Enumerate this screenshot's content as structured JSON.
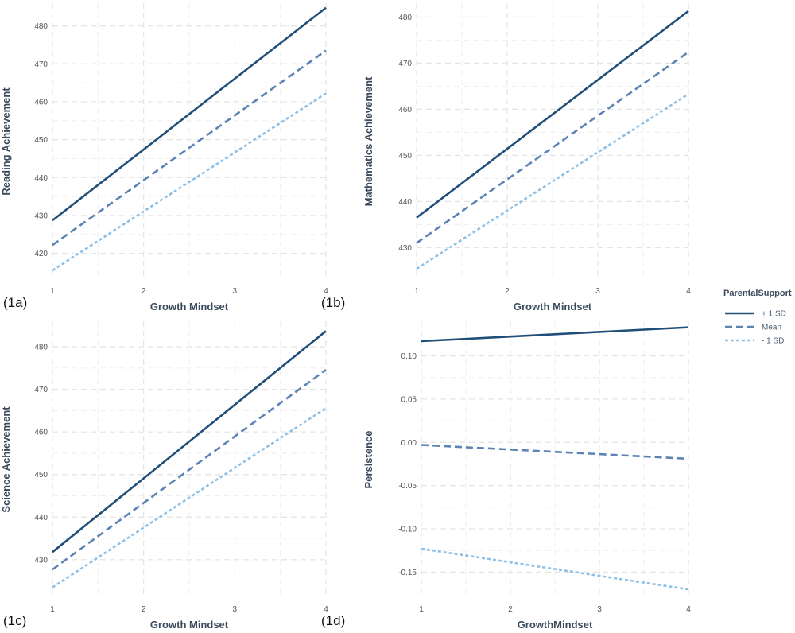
{
  "legend": {
    "title": "ParentalSupport",
    "entries": [
      {
        "label": "+ 1 SD",
        "color": "#1f4e79",
        "dash": "solid"
      },
      {
        "label": "Mean",
        "color": "#5b83b4",
        "dash": "dashed"
      },
      {
        "label": "- 1 SD",
        "color": "#8ec0e6",
        "dash": "dotted"
      }
    ]
  },
  "chart_data": [
    {
      "type": "line",
      "panel_label": "(1a)",
      "xlabel": "Growth Mindset",
      "ylabel": "Reading Achievement",
      "x": [
        1,
        4
      ],
      "xticks": [
        1,
        2,
        3,
        4
      ],
      "yticks": [
        420,
        430,
        440,
        450,
        460,
        470,
        480
      ],
      "ylim": [
        413,
        486
      ],
      "series": [
        {
          "name": "+ 1 SD",
          "values": [
            428.7,
            484.8
          ]
        },
        {
          "name": "Mean",
          "values": [
            422.2,
            473.5
          ]
        },
        {
          "name": "- 1 SD",
          "values": [
            415.5,
            462.2
          ]
        }
      ]
    },
    {
      "type": "line",
      "panel_label": "(1b)",
      "xlabel": "Growth Mindset",
      "ylabel": "Mathematics Achievement",
      "x": [
        1,
        4
      ],
      "xticks": [
        1,
        2,
        3,
        4
      ],
      "yticks": [
        430,
        440,
        450,
        460,
        470,
        480
      ],
      "ylim": [
        423,
        483
      ],
      "series": [
        {
          "name": "+ 1 SD",
          "values": [
            436.5,
            481.3
          ]
        },
        {
          "name": "Mean",
          "values": [
            431.0,
            472.4
          ]
        },
        {
          "name": "- 1 SD",
          "values": [
            425.4,
            463.3
          ]
        }
      ]
    },
    {
      "type": "line",
      "panel_label": "(1c)",
      "xlabel": "Growth Mindset",
      "ylabel": "Science Achievement",
      "x": [
        1,
        4
      ],
      "xticks": [
        1,
        2,
        3,
        4
      ],
      "yticks": [
        430,
        440,
        450,
        460,
        470,
        480
      ],
      "ylim": [
        421,
        486
      ],
      "series": [
        {
          "name": "+ 1 SD",
          "values": [
            431.8,
            483.7
          ]
        },
        {
          "name": "Mean",
          "values": [
            427.7,
            474.6
          ]
        },
        {
          "name": "- 1 SD",
          "values": [
            423.5,
            465.6
          ]
        }
      ]
    },
    {
      "type": "line",
      "panel_label": "(1d)",
      "xlabel": "GrowthMindset",
      "ylabel": "Persistence",
      "x": [
        1,
        4
      ],
      "xticks": [
        1,
        2,
        3,
        4
      ],
      "yticks": [
        -0.15,
        -0.1,
        -0.05,
        0.0,
        0.05,
        0.1
      ],
      "ytick_labels": [
        "-0.15",
        "-0.10",
        "-0.05",
        "0.00",
        "0.05",
        "0.10"
      ],
      "ylim": [
        -0.18,
        0.14
      ],
      "series": [
        {
          "name": "+ 1 SD",
          "values": [
            0.117,
            0.133
          ]
        },
        {
          "name": "Mean",
          "values": [
            -0.003,
            -0.019
          ]
        },
        {
          "name": "- 1 SD",
          "values": [
            -0.123,
            -0.17
          ]
        }
      ]
    }
  ]
}
